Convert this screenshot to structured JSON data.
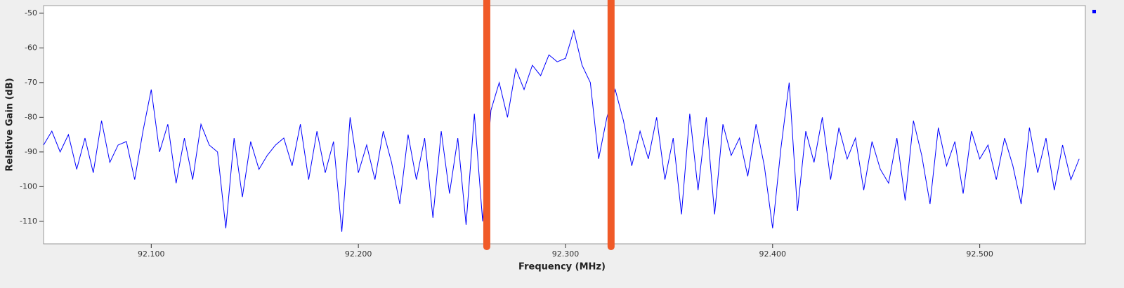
{
  "chart_data": {
    "type": "line",
    "xlabel": "Frequency (MHz)",
    "ylabel": "Relative Gain (dB)",
    "xlim": [
      92.048,
      92.551
    ],
    "ylim": [
      -116.5,
      -47.8
    ],
    "xticks": [
      {
        "value": 92.1,
        "label": "92.100"
      },
      {
        "value": 92.2,
        "label": "92.200"
      },
      {
        "value": 92.3,
        "label": "92.300"
      },
      {
        "value": 92.4,
        "label": "92.400"
      },
      {
        "value": 92.5,
        "label": "92.500"
      }
    ],
    "yticks": [
      -50,
      -60,
      -70,
      -80,
      -90,
      -100,
      -110
    ],
    "highlight_lines": {
      "x": [
        92.262,
        92.322
      ],
      "color": "#f05a28"
    },
    "series": [
      {
        "color": "#0000ff",
        "x": [
          92.048,
          92.052,
          92.056,
          92.06,
          92.064,
          92.068,
          92.072,
          92.076,
          92.08,
          92.084,
          92.088,
          92.092,
          92.096,
          92.1,
          92.104,
          92.108,
          92.112,
          92.116,
          92.12,
          92.124,
          92.128,
          92.132,
          92.136,
          92.14,
          92.144,
          92.148,
          92.152,
          92.156,
          92.16,
          92.164,
          92.168,
          92.172,
          92.176,
          92.18,
          92.184,
          92.188,
          92.192,
          92.196,
          92.2,
          92.204,
          92.208,
          92.212,
          92.216,
          92.22,
          92.224,
          92.228,
          92.232,
          92.236,
          92.24,
          92.244,
          92.248,
          92.252,
          92.256,
          92.26,
          92.264,
          92.268,
          92.272,
          92.276,
          92.28,
          92.284,
          92.288,
          92.292,
          92.296,
          92.3,
          92.304,
          92.308,
          92.312,
          92.316,
          92.32,
          92.324,
          92.328,
          92.332,
          92.336,
          92.34,
          92.344,
          92.348,
          92.352,
          92.356,
          92.36,
          92.364,
          92.368,
          92.372,
          92.376,
          92.38,
          92.384,
          92.388,
          92.392,
          92.396,
          92.4,
          92.404,
          92.408,
          92.412,
          92.416,
          92.42,
          92.424,
          92.428,
          92.432,
          92.436,
          92.44,
          92.444,
          92.448,
          92.452,
          92.456,
          92.46,
          92.464,
          92.468,
          92.472,
          92.476,
          92.48,
          92.484,
          92.488,
          92.492,
          92.496,
          92.5,
          92.504,
          92.508,
          92.512,
          92.516,
          92.52,
          92.524,
          92.528,
          92.532,
          92.536,
          92.54,
          92.544,
          92.548
        ],
        "values": [
          -88,
          -84,
          -90,
          -85,
          -95,
          -86,
          -96,
          -81,
          -93,
          -88,
          -87,
          -98,
          -84,
          -72,
          -90,
          -82,
          -99,
          -86,
          -98,
          -82,
          -88,
          -90,
          -112,
          -86,
          -103,
          -87,
          -95,
          -91,
          -88,
          -86,
          -94,
          -82,
          -98,
          -84,
          -96,
          -87,
          -113,
          -80,
          -96,
          -88,
          -98,
          -84,
          -93,
          -105,
          -85,
          -98,
          -86,
          -109,
          -84,
          -102,
          -86,
          -111,
          -79,
          -110,
          -78,
          -70,
          -80,
          -66,
          -72,
          -65,
          -68,
          -62,
          -64,
          -63,
          -55,
          -65,
          -70,
          -92,
          -80,
          -72,
          -81,
          -94,
          -84,
          -92,
          -80,
          -98,
          -86,
          -108,
          -79,
          -101,
          -80,
          -108,
          -82,
          -91,
          -86,
          -97,
          -82,
          -94,
          -112,
          -89,
          -70,
          -107,
          -84,
          -93,
          -80,
          -98,
          -83,
          -92,
          -86,
          -101,
          -87,
          -95,
          -99,
          -86,
          -104,
          -81,
          -91,
          -105,
          -83,
          -94,
          -87,
          -102,
          -84,
          -92,
          -88,
          -98,
          -86,
          -94,
          -105,
          -83,
          -96,
          -86,
          -101,
          -88,
          -98,
          -92
        ]
      }
    ]
  }
}
